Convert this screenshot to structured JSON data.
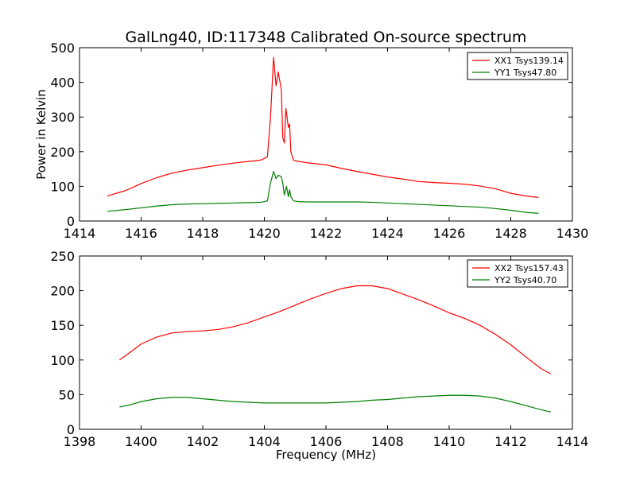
{
  "figure": {
    "title": "GalLng40, ID:117348 Calibrated On-source spectrum"
  },
  "chart_data": [
    {
      "type": "line",
      "title": "GalLng40, ID:117348 Calibrated On-source spectrum",
      "xlabel": "",
      "ylabel": "Power in Kelvin",
      "xlim": [
        1414,
        1430
      ],
      "ylim": [
        0,
        500
      ],
      "xticks": [
        1414,
        1416,
        1418,
        1420,
        1422,
        1424,
        1426,
        1428,
        1430
      ],
      "yticks": [
        0,
        100,
        200,
        300,
        400,
        500
      ],
      "grid": false,
      "legend_position": "top-right",
      "series": [
        {
          "name": "XX1 Tsys139.14",
          "color": "#ff0000",
          "x": [
            1414.9,
            1415.5,
            1416,
            1416.5,
            1417,
            1417.5,
            1418,
            1418.5,
            1419,
            1419.5,
            1419.9,
            1420.1,
            1420.2,
            1420.3,
            1420.38,
            1420.45,
            1420.55,
            1420.6,
            1420.65,
            1420.7,
            1420.78,
            1420.82,
            1420.86,
            1420.95,
            1421.1,
            1421.4,
            1422,
            1422.5,
            1423,
            1423.5,
            1424,
            1424.5,
            1425,
            1425.5,
            1426,
            1426.5,
            1427,
            1427.5,
            1428,
            1428.5,
            1428.9
          ],
          "y": [
            72,
            88,
            108,
            125,
            138,
            147,
            154,
            161,
            167,
            172,
            176,
            185,
            300,
            472,
            390,
            430,
            380,
            240,
            225,
            325,
            270,
            280,
            200,
            175,
            172,
            168,
            162,
            152,
            143,
            135,
            127,
            121,
            114,
            111,
            109,
            106,
            101,
            93,
            80,
            72,
            68
          ]
        },
        {
          "name": "YY1 Tsys47.80",
          "color": "#008000",
          "x": [
            1414.9,
            1415.5,
            1416,
            1416.5,
            1417,
            1417.5,
            1418,
            1418.5,
            1419,
            1419.5,
            1419.9,
            1420.1,
            1420.2,
            1420.3,
            1420.38,
            1420.45,
            1420.55,
            1420.6,
            1420.65,
            1420.72,
            1420.78,
            1420.82,
            1420.86,
            1420.95,
            1421.1,
            1421.4,
            1422,
            1422.5,
            1423,
            1423.5,
            1424,
            1424.5,
            1425,
            1425.5,
            1426,
            1426.5,
            1427,
            1427.5,
            1428,
            1428.5,
            1428.9
          ],
          "y": [
            28,
            33,
            38,
            43,
            47,
            49,
            50,
            51,
            52,
            53,
            54,
            58,
            110,
            143,
            122,
            132,
            128,
            108,
            75,
            100,
            70,
            90,
            70,
            58,
            56,
            55,
            55,
            55,
            55,
            54,
            52,
            50,
            48,
            46,
            44,
            42,
            40,
            36,
            31,
            25,
            22
          ]
        }
      ]
    },
    {
      "type": "line",
      "title": "",
      "xlabel": "Frequency (MHz)",
      "ylabel": "",
      "xlim": [
        1398,
        1414
      ],
      "ylim": [
        0,
        250
      ],
      "xticks": [
        1398,
        1400,
        1402,
        1404,
        1406,
        1408,
        1410,
        1412,
        1414
      ],
      "yticks": [
        0,
        50,
        100,
        150,
        200,
        250
      ],
      "grid": false,
      "legend_position": "top-right",
      "series": [
        {
          "name": "XX2 Tsys157.43",
          "color": "#ff0000",
          "x": [
            1399.3,
            1399.7,
            1400,
            1400.5,
            1401,
            1401.5,
            1402,
            1402.5,
            1403,
            1403.5,
            1404,
            1404.5,
            1405,
            1405.5,
            1406,
            1406.5,
            1407,
            1407.5,
            1408,
            1408.5,
            1409,
            1409.5,
            1410,
            1410.5,
            1411,
            1411.5,
            1412,
            1412.5,
            1413,
            1413.3
          ],
          "y": [
            100,
            113,
            123,
            133,
            139,
            141,
            142,
            144,
            148,
            154,
            162,
            170,
            179,
            188,
            196,
            203,
            207,
            207,
            203,
            195,
            187,
            178,
            168,
            160,
            150,
            137,
            122,
            104,
            87,
            80
          ]
        },
        {
          "name": "YY2 Tsys40.70",
          "color": "#008000",
          "x": [
            1399.3,
            1399.7,
            1400,
            1400.5,
            1401,
            1401.5,
            1402,
            1402.5,
            1403,
            1403.5,
            1404,
            1404.5,
            1405,
            1405.5,
            1406,
            1406.5,
            1407,
            1407.5,
            1408,
            1408.5,
            1409,
            1409.5,
            1410,
            1410.5,
            1411,
            1411.5,
            1412,
            1412.5,
            1413,
            1413.3
          ],
          "y": [
            32,
            36,
            40,
            44,
            46,
            46,
            44,
            42,
            40,
            39,
            38,
            38,
            38,
            38,
            38,
            39,
            40,
            42,
            43,
            45,
            47,
            48,
            49,
            49,
            48,
            45,
            40,
            34,
            28,
            25
          ]
        }
      ]
    }
  ]
}
